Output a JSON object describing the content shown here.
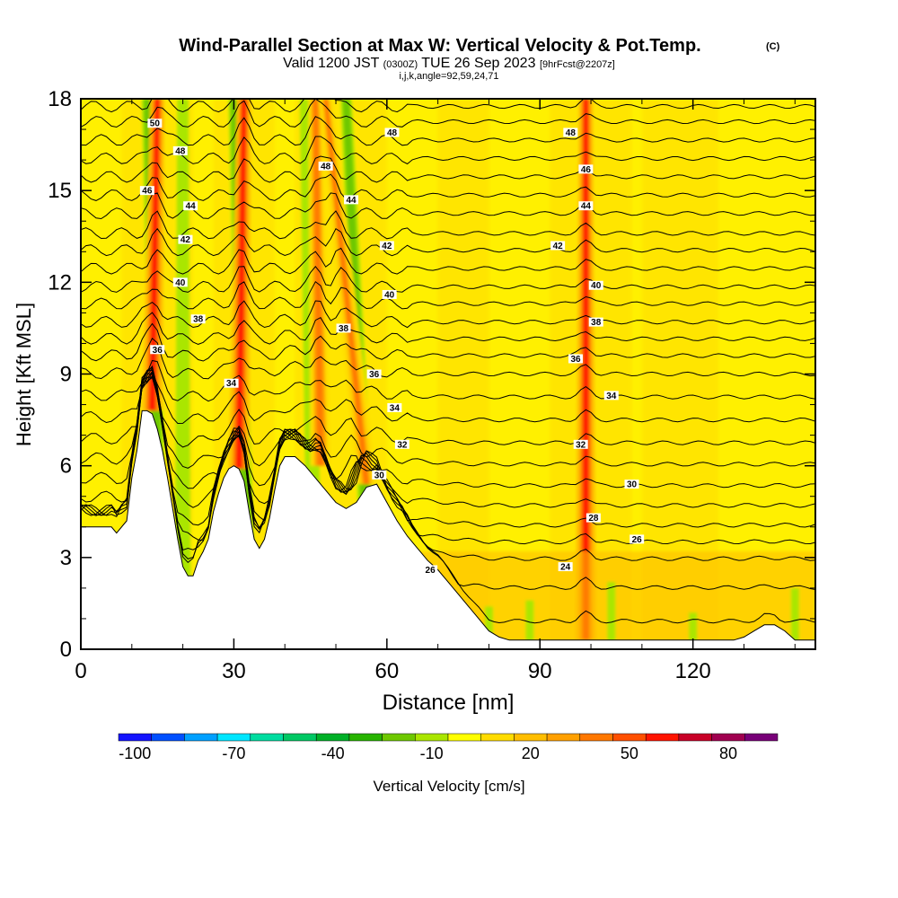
{
  "title": {
    "main": "Wind-Parallel Section at Max W: Vertical Velocity & Pot.Temp.",
    "main_tag": "(C)",
    "valid_prefix": "Valid 1200 JST",
    "valid_utc": "(0300Z)",
    "valid_date": "TUE 26 Sep 2023",
    "forecast": "[9hrFcst@2207z]",
    "indices": "i,j,k,angle=92,59,24,71"
  },
  "chart_data": {
    "type": "heatmap",
    "title": "Wind-Parallel Section at Max W: Vertical Velocity & Pot.Temp.",
    "xlabel": "Distance [nm]",
    "ylabel": "Height [Kft MSL]",
    "xlim": [
      0,
      144
    ],
    "ylim": [
      0,
      18
    ],
    "x_ticks": [
      0,
      30,
      60,
      90,
      120
    ],
    "y_ticks": [
      0,
      3,
      6,
      9,
      12,
      15,
      18
    ],
    "terrain": {
      "x": [
        0,
        6,
        7,
        9,
        10,
        11,
        12,
        12.5,
        13,
        14,
        15,
        16,
        17,
        18,
        19,
        20,
        21,
        22,
        23,
        24,
        25,
        26,
        27,
        28,
        29,
        30,
        31,
        32,
        33,
        34,
        35,
        36,
        37,
        38,
        39,
        40,
        42,
        44,
        46,
        48,
        50,
        52,
        54,
        56,
        58,
        60,
        62,
        64,
        66,
        68,
        70,
        72,
        74,
        76,
        78,
        80,
        82,
        84,
        86,
        88,
        90,
        95,
        100,
        110,
        120,
        124,
        126,
        128,
        130,
        132,
        134,
        136,
        138,
        140,
        144
      ],
      "y": [
        4.0,
        4.0,
        3.8,
        4.2,
        5.6,
        6.5,
        7.8,
        7.8,
        7.8,
        7.7,
        7.2,
        6.5,
        5.6,
        4.6,
        3.6,
        2.7,
        2.4,
        2.4,
        2.9,
        3.2,
        3.6,
        4.5,
        5.1,
        5.6,
        5.9,
        6.0,
        5.9,
        5.5,
        4.5,
        3.6,
        3.3,
        3.6,
        4.3,
        5.2,
        6.0,
        6.3,
        6.3,
        6.0,
        5.6,
        5.2,
        4.8,
        4.6,
        4.8,
        5.3,
        5.4,
        4.8,
        4.2,
        3.7,
        3.3,
        2.9,
        2.6,
        2.2,
        1.8,
        1.4,
        1.0,
        0.6,
        0.4,
        0.3,
        0.3,
        0.3,
        0.3,
        0.3,
        0.3,
        0.3,
        0.3,
        0.3,
        0.3,
        0.3,
        0.4,
        0.6,
        0.8,
        0.8,
        0.6,
        0.3,
        0.3
      ]
    },
    "updraft_plumes": [
      {
        "x_base": 14,
        "x_top": 15,
        "y_base": 7.8,
        "intensity": 60
      },
      {
        "x_base": 31,
        "x_top": 32,
        "y_base": 5.9,
        "intensity": 55
      },
      {
        "x_base": 47,
        "x_top": 46,
        "y_base": 6.0,
        "intensity": 40
      },
      {
        "x_base": 56,
        "x_top": 48,
        "y_base": 5.4,
        "intensity": 35
      },
      {
        "x_base": 99,
        "x_top": 99,
        "y_base": 0.3,
        "intensity": 55
      }
    ],
    "downdraft_bands": [
      {
        "x_base": 16,
        "x_top": 13,
        "intensity": -25
      },
      {
        "x_base": 33,
        "x_top": 30,
        "intensity": -25
      },
      {
        "x_base": 57,
        "x_top": 52,
        "intensity": -25
      },
      {
        "x_base": 46,
        "x_top": 44,
        "intensity": -15
      },
      {
        "x_base": 20,
        "x_top": 20,
        "intensity": -15
      }
    ],
    "potential_temperature": {
      "units": "C",
      "levels": [
        24,
        25,
        26,
        27,
        28,
        29,
        30,
        31,
        32,
        33,
        34,
        35,
        36,
        37,
        38,
        39,
        40,
        41,
        42,
        43,
        44,
        45,
        46,
        47,
        48,
        49,
        50,
        51
      ],
      "far_field_heights": [
        0.9,
        2.0,
        2.95,
        3.5,
        4.05,
        4.7,
        5.35,
        6.05,
        6.75,
        7.5,
        8.25,
        9.0,
        9.6,
        10.15,
        10.7,
        11.3,
        11.85,
        12.45,
        13.05,
        13.6,
        14.25,
        14.85,
        15.45,
        16.05,
        16.65,
        17.25,
        17.75,
        18.2
      ],
      "labels": [
        {
          "text": "50",
          "x": 14.5,
          "y": 17.2
        },
        {
          "text": "48",
          "x": 19.5,
          "y": 16.3
        },
        {
          "text": "46",
          "x": 13,
          "y": 15.0
        },
        {
          "text": "44",
          "x": 21.5,
          "y": 14.5
        },
        {
          "text": "42",
          "x": 20.5,
          "y": 13.4
        },
        {
          "text": "40",
          "x": 19.5,
          "y": 12.0
        },
        {
          "text": "38",
          "x": 23,
          "y": 10.8
        },
        {
          "text": "36",
          "x": 15,
          "y": 9.8
        },
        {
          "text": "34",
          "x": 29.5,
          "y": 8.7
        },
        {
          "text": "48",
          "x": 61,
          "y": 16.9
        },
        {
          "text": "48",
          "x": 48,
          "y": 15.8
        },
        {
          "text": "44",
          "x": 53,
          "y": 14.7
        },
        {
          "text": "42",
          "x": 60,
          "y": 13.2
        },
        {
          "text": "40",
          "x": 60.5,
          "y": 11.6
        },
        {
          "text": "38",
          "x": 51.5,
          "y": 10.5
        },
        {
          "text": "36",
          "x": 57.5,
          "y": 9.0
        },
        {
          "text": "34",
          "x": 61.5,
          "y": 7.9
        },
        {
          "text": "32",
          "x": 63,
          "y": 6.7
        },
        {
          "text": "30",
          "x": 58.5,
          "y": 5.7
        },
        {
          "text": "26",
          "x": 68.5,
          "y": 2.6
        },
        {
          "text": "48",
          "x": 96,
          "y": 16.9
        },
        {
          "text": "46",
          "x": 99,
          "y": 15.7
        },
        {
          "text": "44",
          "x": 99,
          "y": 14.5
        },
        {
          "text": "42",
          "x": 93.5,
          "y": 13.2
        },
        {
          "text": "40",
          "x": 101,
          "y": 11.9
        },
        {
          "text": "38",
          "x": 101,
          "y": 10.7
        },
        {
          "text": "36",
          "x": 97,
          "y": 9.5
        },
        {
          "text": "34",
          "x": 104,
          "y": 8.3
        },
        {
          "text": "32",
          "x": 98,
          "y": 6.7
        },
        {
          "text": "30",
          "x": 108,
          "y": 5.4
        },
        {
          "text": "28",
          "x": 100.5,
          "y": 4.3
        },
        {
          "text": "26",
          "x": 109,
          "y": 3.6
        },
        {
          "text": "24",
          "x": 95,
          "y": 2.7
        }
      ]
    },
    "colorbar": {
      "label": "Vertical Velocity [cm/s]",
      "bounds": [
        -105,
        -95,
        -85,
        -75,
        -65,
        -55,
        -45,
        -35,
        -25,
        -15,
        -5,
        5,
        15,
        25,
        35,
        45,
        55,
        65,
        75,
        85,
        95
      ],
      "colors": [
        "#1414ff",
        "#0050ff",
        "#00a0ff",
        "#00e6ff",
        "#00dca0",
        "#00c864",
        "#00b028",
        "#28b400",
        "#6ec800",
        "#aae600",
        "#ffff00",
        "#ffdc00",
        "#ffbe00",
        "#ffa000",
        "#ff7800",
        "#ff5000",
        "#ff1400",
        "#c80028",
        "#a00050",
        "#780078"
      ],
      "tick_values": [
        -100,
        -70,
        -40,
        -10,
        20,
        50,
        80
      ],
      "tick_labels": [
        "-100",
        "-70",
        "-40",
        "-10",
        "20",
        "50",
        "80"
      ]
    },
    "legend": "none",
    "grid": false
  }
}
